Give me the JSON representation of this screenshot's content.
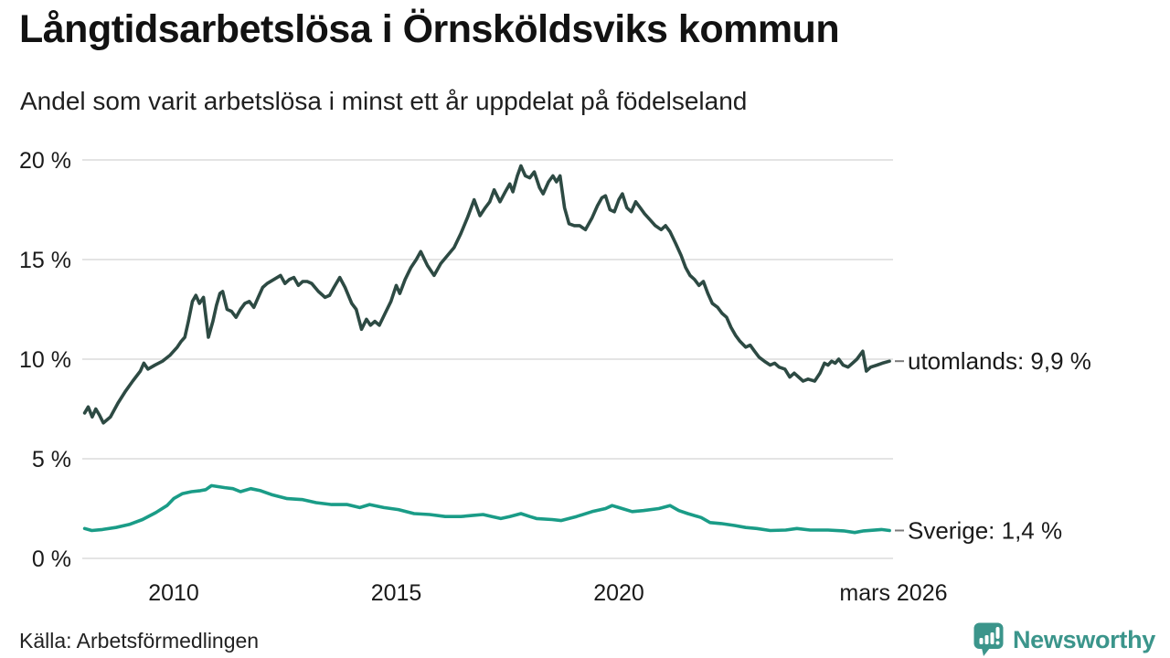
{
  "header": {
    "title": "Långtidsarbetslösa i Örnsköldsviks kommun",
    "subtitle": "Andel som varit arbetslösa i minst ett år uppdelat på födelseland"
  },
  "chart_data": {
    "type": "line",
    "title": "Långtidsarbetslösa i Örnsköldsviks kommun",
    "subtitle": "Andel som varit arbetslösa i minst ett år uppdelat på födelseland",
    "xlabel": "",
    "ylabel": "",
    "x_domain": [
      2008.0,
      2026.25
    ],
    "ylim": [
      0,
      20
    ],
    "grid": true,
    "legend_position": "end-of-line",
    "y_ticks": [
      {
        "value": 0,
        "label": "0 %"
      },
      {
        "value": 5,
        "label": "5 %"
      },
      {
        "value": 10,
        "label": "10 %"
      },
      {
        "value": 15,
        "label": "15 %"
      },
      {
        "value": 20,
        "label": "20 %"
      }
    ],
    "x_ticks": [
      {
        "year": 2010,
        "label": "2010"
      },
      {
        "year": 2015,
        "label": "2015"
      },
      {
        "year": 2020,
        "label": "2020"
      },
      {
        "year": 2026.17,
        "label": "mars 2026"
      }
    ],
    "series": [
      {
        "name": "utomlands",
        "color": "#2d4a43",
        "end_label": "utomlands: 9,9 %",
        "end_value": "9,9 %",
        "points": [
          [
            2008.0,
            7.3
          ],
          [
            2008.08,
            7.6
          ],
          [
            2008.17,
            7.1
          ],
          [
            2008.25,
            7.5
          ],
          [
            2008.33,
            7.2
          ],
          [
            2008.42,
            6.8
          ],
          [
            2008.58,
            7.1
          ],
          [
            2008.75,
            7.8
          ],
          [
            2008.92,
            8.4
          ],
          [
            2009.08,
            8.9
          ],
          [
            2009.25,
            9.4
          ],
          [
            2009.33,
            9.8
          ],
          [
            2009.42,
            9.5
          ],
          [
            2009.58,
            9.7
          ],
          [
            2009.75,
            9.9
          ],
          [
            2009.92,
            10.2
          ],
          [
            2010.08,
            10.6
          ],
          [
            2010.17,
            10.9
          ],
          [
            2010.25,
            11.1
          ],
          [
            2010.33,
            11.9
          ],
          [
            2010.42,
            12.9
          ],
          [
            2010.5,
            13.2
          ],
          [
            2010.58,
            12.8
          ],
          [
            2010.67,
            13.1
          ],
          [
            2010.78,
            11.1
          ],
          [
            2010.88,
            11.9
          ],
          [
            2010.96,
            12.7
          ],
          [
            2011.04,
            13.3
          ],
          [
            2011.1,
            13.4
          ],
          [
            2011.2,
            12.5
          ],
          [
            2011.3,
            12.4
          ],
          [
            2011.4,
            12.1
          ],
          [
            2011.5,
            12.5
          ],
          [
            2011.6,
            12.8
          ],
          [
            2011.7,
            12.9
          ],
          [
            2011.8,
            12.6
          ],
          [
            2011.9,
            13.1
          ],
          [
            2012.0,
            13.6
          ],
          [
            2012.1,
            13.8
          ],
          [
            2012.25,
            14.0
          ],
          [
            2012.4,
            14.2
          ],
          [
            2012.5,
            13.8
          ],
          [
            2012.6,
            14.0
          ],
          [
            2012.7,
            14.1
          ],
          [
            2012.8,
            13.7
          ],
          [
            2012.9,
            13.9
          ],
          [
            2013.0,
            13.9
          ],
          [
            2013.1,
            13.8
          ],
          [
            2013.25,
            13.4
          ],
          [
            2013.4,
            13.1
          ],
          [
            2013.5,
            13.2
          ],
          [
            2013.6,
            13.6
          ],
          [
            2013.73,
            14.1
          ],
          [
            2013.85,
            13.6
          ],
          [
            2014.0,
            12.8
          ],
          [
            2014.1,
            12.5
          ],
          [
            2014.22,
            11.5
          ],
          [
            2014.33,
            12.0
          ],
          [
            2014.42,
            11.7
          ],
          [
            2014.52,
            11.9
          ],
          [
            2014.62,
            11.7
          ],
          [
            2014.75,
            12.3
          ],
          [
            2014.88,
            12.9
          ],
          [
            2015.0,
            13.7
          ],
          [
            2015.08,
            13.3
          ],
          [
            2015.2,
            14.0
          ],
          [
            2015.33,
            14.6
          ],
          [
            2015.45,
            15.0
          ],
          [
            2015.55,
            15.4
          ],
          [
            2015.7,
            14.7
          ],
          [
            2015.85,
            14.2
          ],
          [
            2016.0,
            14.8
          ],
          [
            2016.15,
            15.2
          ],
          [
            2016.3,
            15.6
          ],
          [
            2016.45,
            16.3
          ],
          [
            2016.6,
            17.1
          ],
          [
            2016.75,
            18.0
          ],
          [
            2016.88,
            17.2
          ],
          [
            2017.0,
            17.6
          ],
          [
            2017.1,
            17.9
          ],
          [
            2017.2,
            18.5
          ],
          [
            2017.33,
            17.9
          ],
          [
            2017.45,
            18.4
          ],
          [
            2017.55,
            18.8
          ],
          [
            2017.62,
            18.4
          ],
          [
            2017.72,
            19.2
          ],
          [
            2017.8,
            19.7
          ],
          [
            2017.9,
            19.2
          ],
          [
            2018.0,
            19.1
          ],
          [
            2018.1,
            19.4
          ],
          [
            2018.22,
            18.6
          ],
          [
            2018.3,
            18.3
          ],
          [
            2018.42,
            18.9
          ],
          [
            2018.52,
            19.2
          ],
          [
            2018.6,
            18.9
          ],
          [
            2018.68,
            19.2
          ],
          [
            2018.78,
            17.6
          ],
          [
            2018.88,
            16.8
          ],
          [
            2019.0,
            16.7
          ],
          [
            2019.12,
            16.7
          ],
          [
            2019.25,
            16.5
          ],
          [
            2019.4,
            17.1
          ],
          [
            2019.52,
            17.7
          ],
          [
            2019.62,
            18.1
          ],
          [
            2019.7,
            18.2
          ],
          [
            2019.8,
            17.5
          ],
          [
            2019.9,
            17.4
          ],
          [
            2020.0,
            18.0
          ],
          [
            2020.08,
            18.3
          ],
          [
            2020.18,
            17.6
          ],
          [
            2020.28,
            17.4
          ],
          [
            2020.38,
            17.9
          ],
          [
            2020.48,
            17.6
          ],
          [
            2020.58,
            17.3
          ],
          [
            2020.7,
            17.0
          ],
          [
            2020.82,
            16.7
          ],
          [
            2020.95,
            16.5
          ],
          [
            2021.05,
            16.7
          ],
          [
            2021.15,
            16.4
          ],
          [
            2021.28,
            15.8
          ],
          [
            2021.4,
            15.2
          ],
          [
            2021.5,
            14.6
          ],
          [
            2021.6,
            14.2
          ],
          [
            2021.7,
            14.0
          ],
          [
            2021.8,
            13.7
          ],
          [
            2021.9,
            13.9
          ],
          [
            2022.0,
            13.3
          ],
          [
            2022.1,
            12.8
          ],
          [
            2022.22,
            12.6
          ],
          [
            2022.32,
            12.3
          ],
          [
            2022.42,
            12.1
          ],
          [
            2022.52,
            11.6
          ],
          [
            2022.62,
            11.2
          ],
          [
            2022.72,
            10.9
          ],
          [
            2022.85,
            10.6
          ],
          [
            2022.95,
            10.7
          ],
          [
            2023.05,
            10.4
          ],
          [
            2023.15,
            10.1
          ],
          [
            2023.27,
            9.9
          ],
          [
            2023.4,
            9.7
          ],
          [
            2023.5,
            9.8
          ],
          [
            2023.6,
            9.6
          ],
          [
            2023.73,
            9.5
          ],
          [
            2023.84,
            9.1
          ],
          [
            2023.94,
            9.3
          ],
          [
            2024.04,
            9.1
          ],
          [
            2024.14,
            8.9
          ],
          [
            2024.25,
            9.0
          ],
          [
            2024.4,
            8.9
          ],
          [
            2024.52,
            9.3
          ],
          [
            2024.62,
            9.8
          ],
          [
            2024.7,
            9.7
          ],
          [
            2024.78,
            9.9
          ],
          [
            2024.86,
            9.8
          ],
          [
            2024.94,
            10.0
          ],
          [
            2025.04,
            9.7
          ],
          [
            2025.15,
            9.6
          ],
          [
            2025.25,
            9.8
          ],
          [
            2025.35,
            10.0
          ],
          [
            2025.48,
            10.4
          ],
          [
            2025.56,
            9.4
          ],
          [
            2025.66,
            9.6
          ],
          [
            2025.8,
            9.7
          ],
          [
            2025.92,
            9.8
          ],
          [
            2026.08,
            9.9
          ]
        ]
      },
      {
        "name": "Sverige",
        "color": "#1a9c87",
        "end_label": "Sverige: 1,4 %",
        "end_value": "1,4 %",
        "points": [
          [
            2008.0,
            1.5
          ],
          [
            2008.16,
            1.4
          ],
          [
            2008.4,
            1.45
          ],
          [
            2008.7,
            1.55
          ],
          [
            2009.0,
            1.7
          ],
          [
            2009.3,
            1.95
          ],
          [
            2009.6,
            2.3
          ],
          [
            2009.85,
            2.65
          ],
          [
            2010.0,
            3.0
          ],
          [
            2010.2,
            3.25
          ],
          [
            2010.4,
            3.35
          ],
          [
            2010.6,
            3.4
          ],
          [
            2010.72,
            3.45
          ],
          [
            2010.85,
            3.65
          ],
          [
            2011.0,
            3.6
          ],
          [
            2011.15,
            3.55
          ],
          [
            2011.33,
            3.5
          ],
          [
            2011.5,
            3.35
          ],
          [
            2011.73,
            3.5
          ],
          [
            2011.95,
            3.4
          ],
          [
            2012.2,
            3.2
          ],
          [
            2012.55,
            3.0
          ],
          [
            2012.9,
            2.95
          ],
          [
            2013.2,
            2.8
          ],
          [
            2013.55,
            2.7
          ],
          [
            2013.9,
            2.7
          ],
          [
            2014.18,
            2.55
          ],
          [
            2014.4,
            2.7
          ],
          [
            2014.72,
            2.55
          ],
          [
            2015.05,
            2.45
          ],
          [
            2015.4,
            2.25
          ],
          [
            2015.75,
            2.2
          ],
          [
            2016.1,
            2.1
          ],
          [
            2016.45,
            2.1
          ],
          [
            2016.7,
            2.15
          ],
          [
            2016.95,
            2.2
          ],
          [
            2017.15,
            2.1
          ],
          [
            2017.35,
            2.0
          ],
          [
            2017.55,
            2.1
          ],
          [
            2017.8,
            2.25
          ],
          [
            2018.0,
            2.1
          ],
          [
            2018.15,
            2.0
          ],
          [
            2018.5,
            1.95
          ],
          [
            2018.7,
            1.9
          ],
          [
            2019.05,
            2.1
          ],
          [
            2019.4,
            2.35
          ],
          [
            2019.7,
            2.5
          ],
          [
            2019.85,
            2.65
          ],
          [
            2020.0,
            2.55
          ],
          [
            2020.3,
            2.35
          ],
          [
            2020.55,
            2.4
          ],
          [
            2020.9,
            2.5
          ],
          [
            2021.15,
            2.65
          ],
          [
            2021.35,
            2.4
          ],
          [
            2021.55,
            2.25
          ],
          [
            2021.85,
            2.05
          ],
          [
            2022.05,
            1.8
          ],
          [
            2022.3,
            1.75
          ],
          [
            2022.6,
            1.65
          ],
          [
            2022.85,
            1.55
          ],
          [
            2023.1,
            1.5
          ],
          [
            2023.4,
            1.4
          ],
          [
            2023.75,
            1.42
          ],
          [
            2024.0,
            1.5
          ],
          [
            2024.3,
            1.42
          ],
          [
            2024.7,
            1.42
          ],
          [
            2025.05,
            1.38
          ],
          [
            2025.3,
            1.3
          ],
          [
            2025.5,
            1.38
          ],
          [
            2025.9,
            1.45
          ],
          [
            2026.08,
            1.4
          ]
        ]
      }
    ]
  },
  "footer": {
    "source": "Källa: Arbetsförmedlingen",
    "brand": "Newsworthy"
  },
  "colors": {
    "background": "#ffffff",
    "grid": "#e4e4e4",
    "text": "#1a1a1a",
    "label_dash": "#7a7a7a",
    "series_dark": "#2d4a43",
    "series_teal": "#1a9c87",
    "brand": "#3b958b"
  }
}
